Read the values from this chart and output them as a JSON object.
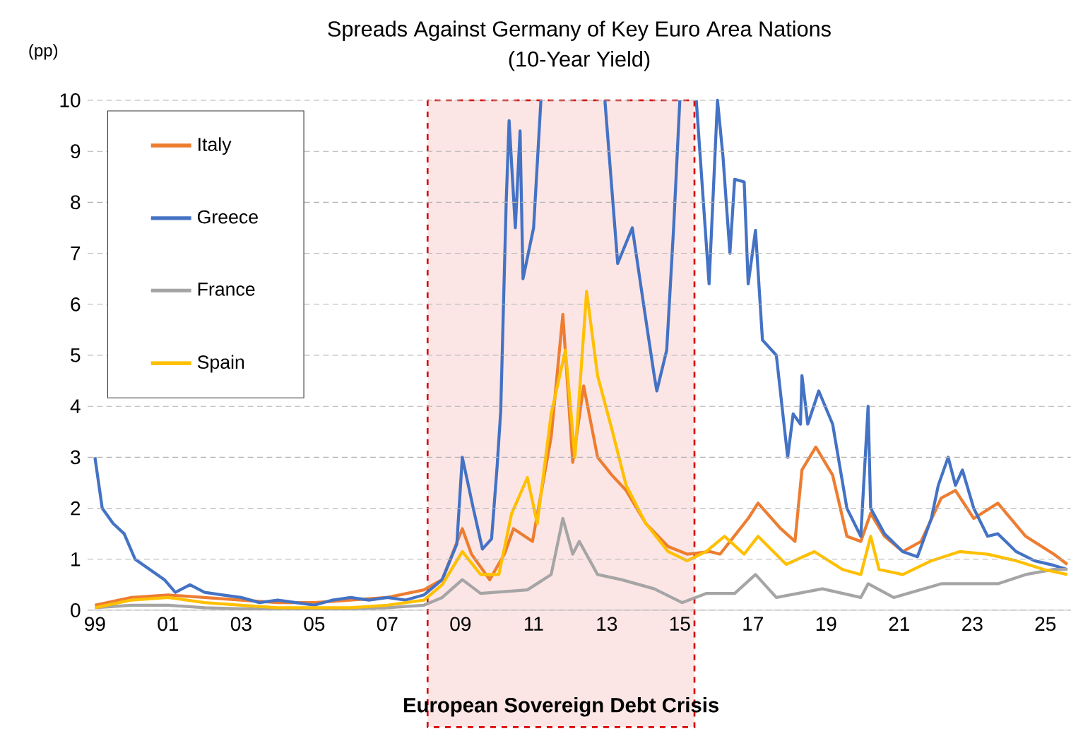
{
  "chart_data": {
    "type": "line",
    "title": "Spreads Against Germany of Key Euro Area Nations\n(10-Year Yield)",
    "ylabel": "(pp)",
    "xlim": [
      1998.8,
      2025.7
    ],
    "ylim": [
      0,
      10
    ],
    "xticks": [
      {
        "value": 1999,
        "label": "99"
      },
      {
        "value": 2001,
        "label": "01"
      },
      {
        "value": 2003,
        "label": "03"
      },
      {
        "value": 2005,
        "label": "05"
      },
      {
        "value": 2007,
        "label": "07"
      },
      {
        "value": 2009,
        "label": "09"
      },
      {
        "value": 2011,
        "label": "11"
      },
      {
        "value": 2013,
        "label": "13"
      },
      {
        "value": 2015,
        "label": "15"
      },
      {
        "value": 2017,
        "label": "17"
      },
      {
        "value": 2019,
        "label": "19"
      },
      {
        "value": 2021,
        "label": "21"
      },
      {
        "value": 2023,
        "label": "23"
      },
      {
        "value": 2025,
        "label": "25"
      }
    ],
    "yticks": [
      0,
      1,
      2,
      3,
      4,
      5,
      6,
      7,
      8,
      9,
      10
    ],
    "grid": "y",
    "legend": "top left",
    "marker": "none",
    "line_style": "solid",
    "bands": [
      {
        "axis": "x",
        "from": 2008.1,
        "to": 2015.4,
        "label": "European Sovereign Debt Crisis",
        "color": "#fbe6e5"
      }
    ],
    "series": [
      {
        "name": "Italy",
        "color": "#ed7d31",
        "x": [
          1999.0,
          2000.0,
          2001.0,
          2002.0,
          2003.0,
          2004.0,
          2005.0,
          2006.0,
          2007.0,
          2008.0,
          2008.5,
          2009.05,
          2009.3,
          2009.8,
          2010.2,
          2010.45,
          2010.97,
          2011.48,
          2011.8,
          2012.07,
          2012.37,
          2012.75,
          2013.14,
          2013.53,
          2014.07,
          2014.68,
          2015.2,
          2015.83,
          2016.1,
          2016.87,
          2017.14,
          2017.76,
          2018.15,
          2018.34,
          2018.72,
          2019.18,
          2019.57,
          2019.95,
          2020.22,
          2020.6,
          2021.1,
          2021.6,
          2022.15,
          2022.54,
          2023.04,
          2023.7,
          2024.46,
          2025.23,
          2025.6
        ],
        "values": [
          0.1,
          0.25,
          0.3,
          0.25,
          0.2,
          0.15,
          0.15,
          0.2,
          0.25,
          0.4,
          0.6,
          1.6,
          1.1,
          0.6,
          1.1,
          1.6,
          1.35,
          3.4,
          5.8,
          2.9,
          4.4,
          3.0,
          2.65,
          2.35,
          1.7,
          1.25,
          1.1,
          1.15,
          1.1,
          1.8,
          2.1,
          1.6,
          1.35,
          2.75,
          3.2,
          2.65,
          1.45,
          1.35,
          1.9,
          1.45,
          1.15,
          1.35,
          2.2,
          2.35,
          1.8,
          2.1,
          1.45,
          1.1,
          0.9
        ]
      },
      {
        "name": "Greece",
        "color": "#4472c4",
        "x": [
          1999.0,
          1999.2,
          1999.5,
          1999.8,
          2000.1,
          2000.5,
          2000.9,
          2001.2,
          2001.6,
          2002.0,
          2002.5,
          2003.0,
          2003.5,
          2004.0,
          2004.5,
          2005.0,
          2005.5,
          2006.0,
          2006.5,
          2007.0,
          2007.5,
          2008.0,
          2008.5,
          2008.9,
          2009.05,
          2009.35,
          2009.6,
          2009.85,
          2010.0,
          2010.1,
          2010.25,
          2010.33,
          2010.5,
          2010.63,
          2010.71,
          2011.0,
          2011.2,
          2012.0,
          2012.95,
          2013.3,
          2013.7,
          2014.07,
          2014.3,
          2014.37,
          2014.64,
          2014.83,
          2015.0,
          2015.2,
          2015.45,
          2015.8,
          2016.03,
          2016.18,
          2016.37,
          2016.5,
          2016.76,
          2016.87,
          2017.07,
          2017.26,
          2017.64,
          2017.95,
          2018.1,
          2018.3,
          2018.34,
          2018.5,
          2018.8,
          2019.18,
          2019.57,
          2019.95,
          2020.15,
          2020.22,
          2020.6,
          2021.1,
          2021.5,
          2021.88,
          2022.07,
          2022.34,
          2022.54,
          2022.73,
          2023.04,
          2023.42,
          2023.7,
          2024.2,
          2024.7,
          2025.23,
          2025.6
        ],
        "values": [
          3.0,
          2.0,
          1.7,
          1.5,
          1.0,
          0.8,
          0.6,
          0.35,
          0.5,
          0.35,
          0.3,
          0.25,
          0.15,
          0.2,
          0.15,
          0.1,
          0.2,
          0.25,
          0.2,
          0.25,
          0.2,
          0.3,
          0.6,
          1.3,
          3.0,
          2.0,
          1.2,
          1.4,
          2.8,
          3.9,
          8.0,
          9.6,
          7.5,
          9.4,
          6.5,
          7.5,
          10,
          null,
          10,
          6.8,
          7.5,
          5.7,
          4.6,
          4.3,
          5.1,
          7.5,
          10,
          null,
          10,
          6.4,
          10,
          8.9,
          7.0,
          8.45,
          8.4,
          6.4,
          7.45,
          5.3,
          5.0,
          3.0,
          3.85,
          3.65,
          4.6,
          3.65,
          4.3,
          3.65,
          2.0,
          1.45,
          4.0,
          2.0,
          1.5,
          1.15,
          1.05,
          1.8,
          2.45,
          3.0,
          2.45,
          2.75,
          2.0,
          1.45,
          1.5,
          1.15,
          0.97,
          0.88,
          0.8
        ]
      },
      {
        "name": "France",
        "color": "#a5a5a5",
        "x": [
          1999.0,
          2000.0,
          2001.0,
          2002.0,
          2003.0,
          2004.0,
          2005.0,
          2006.0,
          2007.0,
          2008.0,
          2008.5,
          2009.05,
          2009.55,
          2010.83,
          2011.48,
          2011.8,
          2012.07,
          2012.25,
          2012.75,
          2013.4,
          2014.3,
          2015.06,
          2015.72,
          2016.5,
          2017.07,
          2017.64,
          2018.9,
          2019.95,
          2020.15,
          2020.85,
          2022.15,
          2022.9,
          2023.7,
          2024.46,
          2025.23,
          2025.6
        ],
        "values": [
          0.05,
          0.1,
          0.1,
          0.05,
          0.03,
          0.03,
          0.03,
          0.03,
          0.05,
          0.1,
          0.25,
          0.6,
          0.33,
          0.4,
          0.7,
          1.8,
          1.1,
          1.35,
          0.7,
          0.6,
          0.42,
          0.15,
          0.33,
          0.33,
          0.7,
          0.25,
          0.42,
          0.25,
          0.52,
          0.25,
          0.52,
          0.52,
          0.52,
          0.7,
          0.8,
          0.8
        ]
      },
      {
        "name": "Spain",
        "color": "#ffc000",
        "x": [
          1999.0,
          2000.0,
          2001.0,
          2002.0,
          2003.0,
          2004.0,
          2005.0,
          2006.0,
          2007.0,
          2008.0,
          2008.5,
          2009.05,
          2009.55,
          2010.05,
          2010.4,
          2010.83,
          2011.1,
          2011.48,
          2011.87,
          2012.13,
          2012.45,
          2012.75,
          2013.14,
          2013.53,
          2014.07,
          2014.68,
          2015.2,
          2015.72,
          2016.22,
          2016.76,
          2017.14,
          2017.91,
          2018.68,
          2019.45,
          2019.95,
          2020.22,
          2020.45,
          2021.1,
          2021.88,
          2022.65,
          2023.42,
          2024.2,
          2024.96,
          2025.6
        ],
        "values": [
          0.05,
          0.2,
          0.25,
          0.15,
          0.1,
          0.05,
          0.05,
          0.05,
          0.1,
          0.2,
          0.5,
          1.15,
          0.7,
          0.7,
          1.9,
          2.6,
          1.7,
          3.85,
          5.1,
          3.0,
          6.25,
          4.6,
          3.55,
          2.45,
          1.7,
          1.15,
          0.97,
          1.15,
          1.45,
          1.1,
          1.45,
          0.9,
          1.15,
          0.8,
          0.7,
          1.45,
          0.8,
          0.7,
          0.97,
          1.15,
          1.1,
          0.97,
          0.8,
          0.7
        ]
      }
    ]
  }
}
